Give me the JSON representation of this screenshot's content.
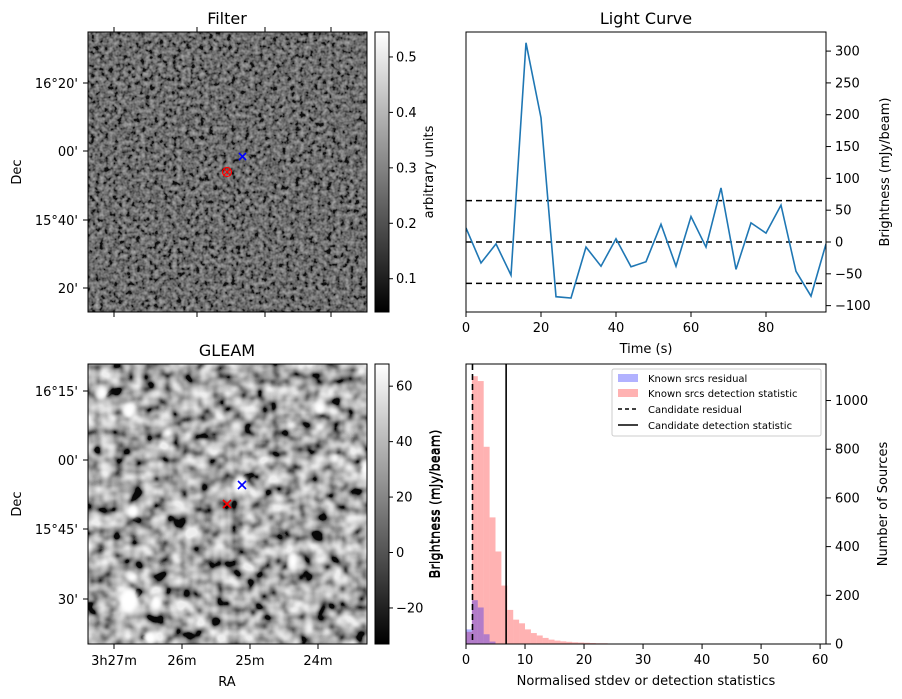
{
  "chart_data": [
    {
      "type": "heatmap",
      "title": "Filter",
      "xlabel": "",
      "ylabel": "Dec",
      "ytick_labels": [
        "16°20'",
        "00'",
        "15°40'",
        "20'"
      ],
      "colorbar": {
        "label": "arbitrary units",
        "range": [
          0.04,
          0.545
        ],
        "ticks": [
          0.1,
          0.2,
          0.3,
          0.4,
          0.5
        ]
      },
      "markers": [
        {
          "symbol": "x",
          "color": "#0000ff",
          "meaning": "position A"
        },
        {
          "symbol": "circle+x",
          "color": "#ff0000",
          "meaning": "position B"
        }
      ]
    },
    {
      "type": "line",
      "title": "Light Curve",
      "xlabel": "Time (s)",
      "ylabel": "Brightness (mJy/beam)",
      "xlim": [
        0,
        96
      ],
      "ylim": [
        -110,
        330
      ],
      "xticks": [
        0,
        20,
        40,
        60,
        80
      ],
      "yticks": [
        -100,
        -50,
        0,
        50,
        100,
        150,
        200,
        250,
        300
      ],
      "series": [
        {
          "color": "#1f77b4",
          "x": [
            0,
            4,
            8,
            12,
            16,
            20,
            24,
            28,
            32,
            36,
            40,
            44,
            48,
            52,
            56,
            60,
            64,
            68,
            72,
            76,
            80,
            84,
            88,
            92,
            96
          ],
          "y": [
            22,
            -33,
            -3,
            -52,
            313,
            195,
            -86,
            -88,
            -8,
            -38,
            5,
            -39,
            -31,
            28,
            -38,
            40,
            -8,
            85,
            -43,
            30,
            14,
            58,
            -46,
            -85,
            -3
          ]
        }
      ],
      "hlines": [
        {
          "y": 65,
          "style": "dashed"
        },
        {
          "y": 0,
          "style": "dashed"
        },
        {
          "y": -65,
          "style": "dashed"
        }
      ]
    },
    {
      "type": "heatmap",
      "title": "GLEAM",
      "xlabel": "RA",
      "ylabel": "Dec",
      "xtick_labels": [
        "3h27m",
        "26m",
        "25m",
        "24m"
      ],
      "ytick_labels": [
        "16°15'",
        "00'",
        "15°45'",
        "30'"
      ],
      "colorbar": {
        "label": "Brightness (mJy/beam)",
        "range": [
          -33,
          68
        ],
        "ticks": [
          -20,
          0,
          20,
          40,
          60
        ]
      },
      "markers": [
        {
          "symbol": "x",
          "color": "#0000ff",
          "meaning": "position A"
        },
        {
          "symbol": "x",
          "color": "#ff0000",
          "meaning": "position B"
        }
      ]
    },
    {
      "type": "bar",
      "xlabel": "Normalised stdev or detection statistics",
      "ylabel": "Number of Sources",
      "xlim": [
        0,
        61
      ],
      "ylim": [
        0,
        1150
      ],
      "xticks": [
        0,
        10,
        20,
        30,
        40,
        50,
        60
      ],
      "yticks": [
        0,
        200,
        400,
        600,
        800,
        1000
      ],
      "bin_width": 1,
      "series": [
        {
          "name": "Known srcs residual",
          "color": "#0000ff",
          "bin_start": 0,
          "values": [
            60,
            180,
            150,
            40,
            10,
            2
          ]
        },
        {
          "name": "Known srcs detection statistic",
          "color": "#ff0000",
          "bin_start": 0,
          "values": [
            50,
            1100,
            1080,
            810,
            520,
            380,
            240,
            140,
            100,
            85,
            60,
            45,
            35,
            25,
            18,
            14,
            11,
            9,
            7,
            6,
            5,
            4,
            3,
            3,
            2,
            2,
            2,
            1,
            1,
            1,
            1,
            1,
            1,
            1,
            1,
            1,
            1,
            1,
            0,
            0,
            0,
            0,
            0,
            0,
            0,
            0,
            0,
            0,
            0,
            0,
            0,
            0,
            0,
            0,
            0,
            0,
            0,
            0,
            1,
            0
          ]
        }
      ],
      "vlines": [
        {
          "name": "Candidate residual",
          "x": 1.1,
          "style": "dashed"
        },
        {
          "name": "Candidate detection statistic",
          "x": 6.8,
          "style": "solid"
        }
      ],
      "legend": "top-right"
    }
  ]
}
